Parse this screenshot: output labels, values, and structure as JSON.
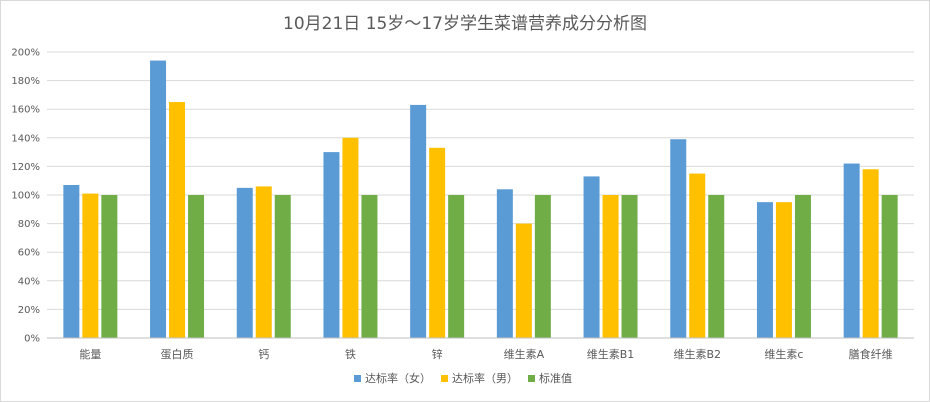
{
  "chart_data": {
    "type": "bar",
    "title": "10月21日 15岁～17岁学生菜谱营养成分分析图",
    "categories": [
      "能量",
      "蛋白质",
      "钙",
      "铁",
      "锌",
      "维生素A",
      "维生素B1",
      "维生素B2",
      "维生素c",
      "膳食纤维"
    ],
    "series": [
      {
        "name": "达标率（女）",
        "color": "#5b9bd5",
        "values": [
          107,
          194,
          105,
          130,
          163,
          104,
          113,
          139,
          95,
          122
        ]
      },
      {
        "name": "达标率（男）",
        "color": "#ffc000",
        "values": [
          101,
          165,
          106,
          140,
          133,
          80,
          100,
          115,
          95,
          118
        ]
      },
      {
        "name": "标准值",
        "color": "#70ad47",
        "values": [
          100,
          100,
          100,
          100,
          100,
          100,
          100,
          100,
          100,
          100
        ]
      }
    ],
    "ylim": [
      0,
      200
    ],
    "yticks": [
      "0%",
      "20%",
      "40%",
      "60%",
      "80%",
      "100%",
      "120%",
      "140%",
      "160%",
      "180%",
      "200%"
    ],
    "grid": true,
    "legend_position": "bottom"
  }
}
